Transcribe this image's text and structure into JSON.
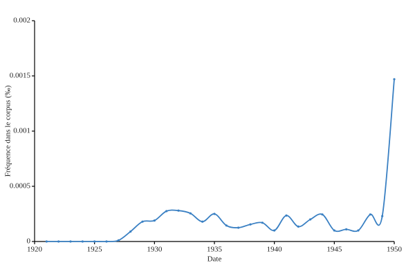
{
  "chart_data": {
    "type": "line",
    "x_label": "Date",
    "y_label": "Fréquence dans le corpus (‰)",
    "x": [
      1921,
      1922,
      1923,
      1924,
      1925,
      1926,
      1927,
      1928,
      1929,
      1930,
      1931,
      1932,
      1933,
      1934,
      1935,
      1936,
      1937,
      1938,
      1939,
      1940,
      1941,
      1942,
      1943,
      1944,
      1945,
      1946,
      1947,
      1948,
      1949,
      1950
    ],
    "series": [
      {
        "color": "#3a80c3",
        "values": [
          0,
          0,
          0,
          0,
          0,
          0,
          1e-05,
          9e-05,
          0.00018,
          0.00019,
          0.000275,
          0.00028,
          0.000255,
          0.00018,
          0.00025,
          0.000145,
          0.000125,
          0.000155,
          0.00017,
          0.0001,
          0.000235,
          0.000135,
          0.0002,
          0.000245,
          0.0001,
          0.00011,
          0.0001,
          0.000245,
          0.00023,
          0.00147
        ]
      }
    ],
    "xlim": [
      1920,
      1950
    ],
    "xticks": [
      1920,
      1925,
      1930,
      1935,
      1940,
      1945,
      1950
    ],
    "ylim": [
      0,
      0.002
    ],
    "yticks": [
      0,
      0.0005,
      0.001,
      0.0015,
      0.002
    ],
    "smooth": true
  }
}
